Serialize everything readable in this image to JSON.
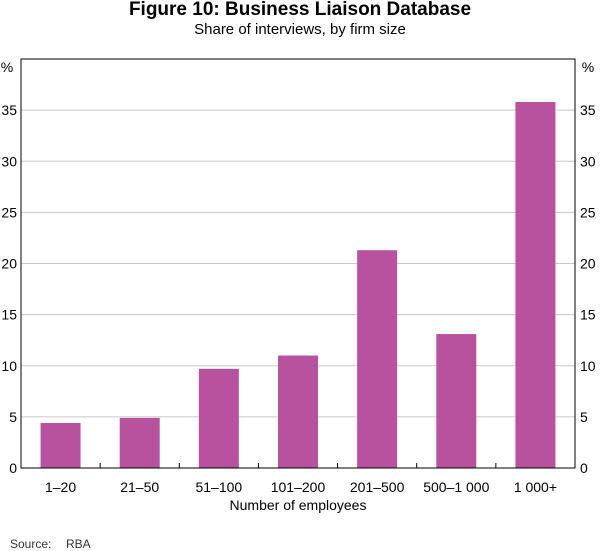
{
  "chart_data": {
    "type": "bar",
    "title": "Figure 10: Business Liaison Database",
    "subtitle": "Share of interviews, by firm size",
    "categories": [
      "1–20",
      "21–50",
      "51–100",
      "101–200",
      "201–500",
      "500–1 000",
      "1 000+"
    ],
    "values": [
      4.4,
      4.9,
      9.7,
      11.0,
      21.3,
      13.1,
      35.8
    ],
    "xlabel": "Number of employees",
    "ylabel_left": "%",
    "ylabel_right": "%",
    "ylim": [
      0,
      40
    ],
    "yticks": [
      0,
      5,
      10,
      15,
      20,
      25,
      30,
      35
    ],
    "grid": true,
    "bar_color": "#b8529f"
  },
  "source": {
    "label": "Source:",
    "value": "RBA"
  }
}
